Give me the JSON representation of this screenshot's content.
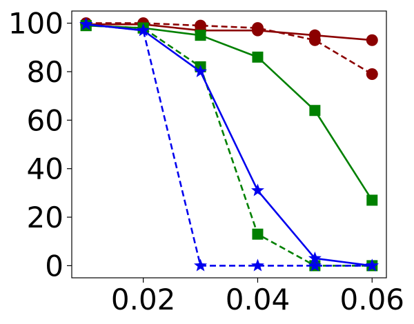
{
  "chart_data": {
    "type": "line",
    "title": "",
    "xlabel": "",
    "ylabel": "",
    "xlim": [
      0.0075,
      0.0625
    ],
    "ylim": [
      -5,
      105
    ],
    "x": [
      0.01,
      0.02,
      0.03,
      0.04,
      0.05,
      0.06
    ],
    "xticks": [
      0.02,
      0.04,
      0.06
    ],
    "xtick_labels": [
      "0.02",
      "0.04",
      "0.06"
    ],
    "yticks": [
      0,
      20,
      40,
      60,
      80,
      100
    ],
    "ytick_labels": [
      "0",
      "20",
      "40",
      "60",
      "80",
      "100"
    ],
    "grid": false,
    "legend": "none",
    "series": [
      {
        "color": "#8b0000",
        "dash": "solid",
        "marker": "circle",
        "values": [
          99.5,
          99.5,
          97,
          97,
          95,
          93
        ]
      },
      {
        "color": "#8b0000",
        "dash": "dashed",
        "marker": "circle",
        "values": [
          100,
          100,
          99,
          98,
          93,
          79
        ]
      },
      {
        "color": "#008000",
        "dash": "solid",
        "marker": "square",
        "values": [
          99,
          98,
          95,
          86,
          64,
          27
        ]
      },
      {
        "color": "#008000",
        "dash": "dashed",
        "marker": "square",
        "values": [
          99,
          98,
          82,
          13,
          0,
          0
        ]
      },
      {
        "color": "#0000ee",
        "dash": "solid",
        "marker": "star",
        "values": [
          99.5,
          97,
          80,
          31,
          3,
          0
        ]
      },
      {
        "color": "#0000ee",
        "dash": "dashed",
        "marker": "star",
        "values": [
          99.5,
          97,
          0,
          0,
          0,
          0
        ]
      }
    ]
  }
}
